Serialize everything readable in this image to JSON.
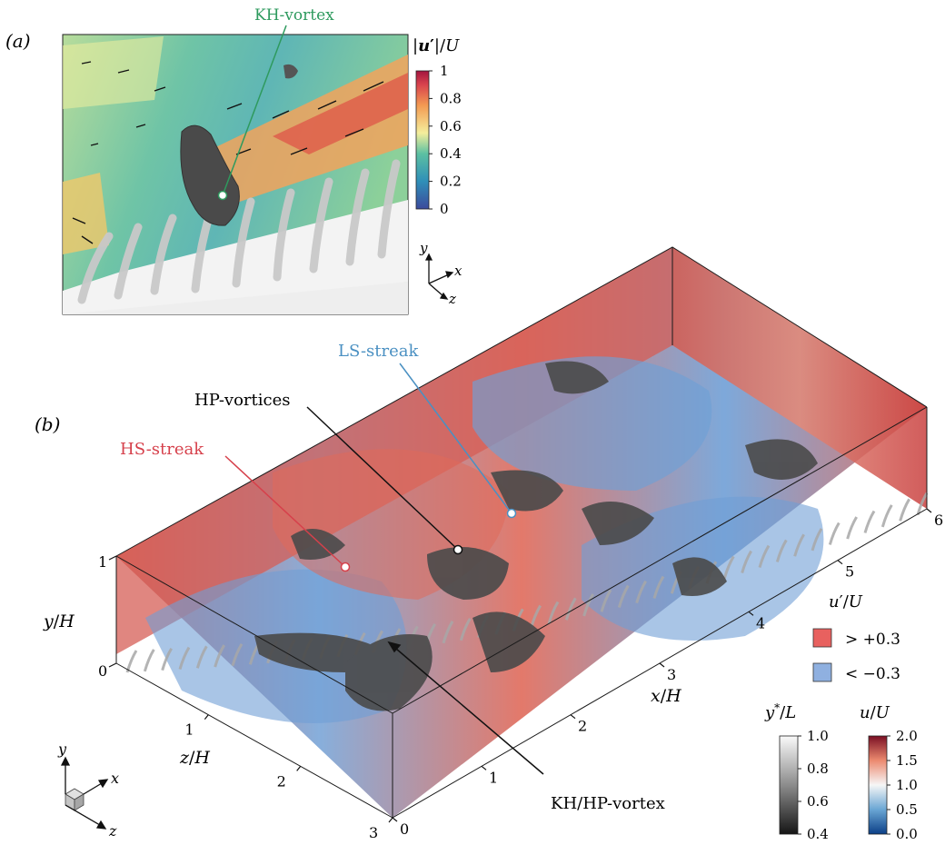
{
  "panel_a": {
    "label": "(a)",
    "callout": "KH-vortex",
    "colorbar": {
      "title_bold": "u",
      "title_prime": "′",
      "title_rest": "|/",
      "title_U": "U",
      "ticks": [
        "1",
        "0.8",
        "0.6",
        "0.4",
        "0.2",
        "0"
      ]
    },
    "axes": {
      "y": "y",
      "x": "x",
      "z": "z"
    }
  },
  "panel_b": {
    "label": "(b)",
    "callouts": {
      "ls": "LS-streak",
      "hp": "HP-vortices",
      "hs": "HS-streak",
      "khhp": "KH/HP-vortex"
    },
    "y_axis": {
      "label_v": "y",
      "label_u": "H",
      "ticks": [
        "1",
        "0"
      ]
    },
    "z_axis": {
      "label_v": "z",
      "label_u": "H",
      "ticks": [
        "1",
        "2",
        "3"
      ]
    },
    "x_axis": {
      "label_v": "x",
      "label_u": "H",
      "ticks": [
        "0",
        "1",
        "2",
        "3",
        "4",
        "5",
        "6"
      ]
    },
    "legend": {
      "title_v": "u",
      "title_prime": "′",
      "title_u": "U",
      "items": [
        {
          "label": "> +0.3",
          "color": "#e8615f"
        },
        {
          "label": "< −0.3",
          "color": "#8fb0e0"
        }
      ]
    },
    "colorbar_gray": {
      "title_v": "y",
      "title_star": "*",
      "title_u": "L",
      "ticks": [
        "1.0",
        "0.8",
        "0.6",
        "0.4"
      ]
    },
    "colorbar_u": {
      "title_v": "u",
      "title_u": "U",
      "ticks": [
        "2.0",
        "1.5",
        "1.0",
        "0.5",
        "0.0"
      ]
    },
    "triad": {
      "y": "y",
      "x": "x",
      "z": "z"
    }
  },
  "colors": {
    "hs_callout": "#d6404b",
    "ls_callout": "#4a90c2",
    "kh_callout": "#2e9a5e",
    "red_field": "#d9574e",
    "blue_field": "#6f9fd6"
  }
}
